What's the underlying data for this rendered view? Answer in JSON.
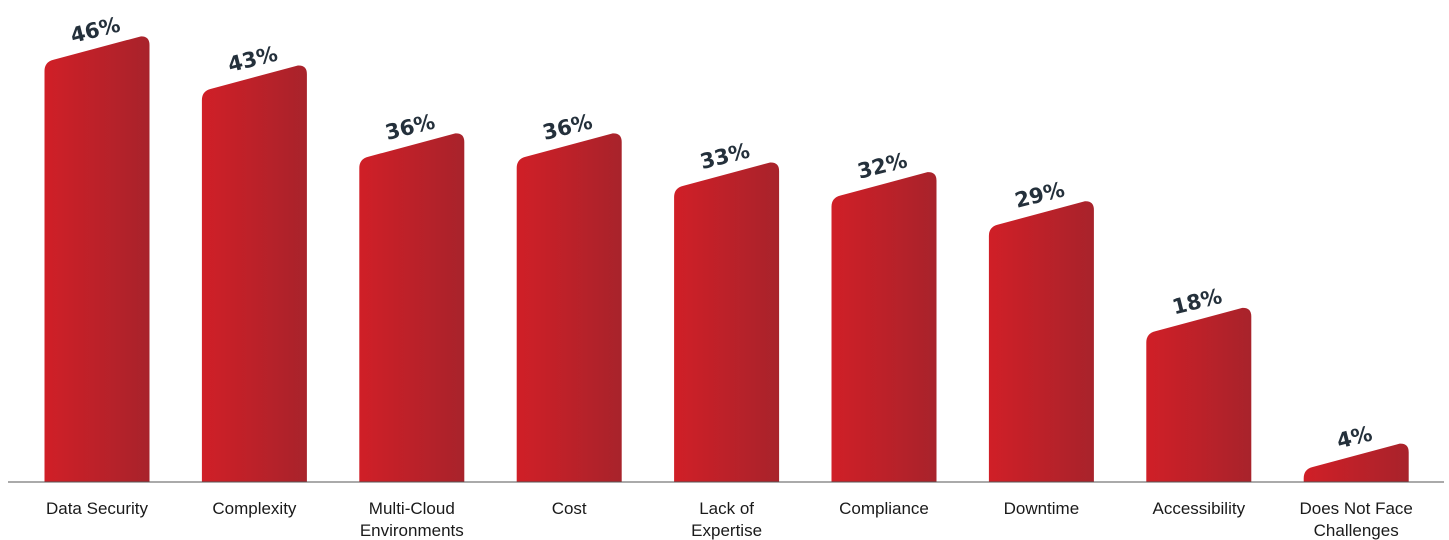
{
  "chart_data": {
    "type": "bar",
    "title": "",
    "xlabel": "",
    "ylabel": "",
    "ylim": [
      0,
      46
    ],
    "grid": false,
    "legend": "none",
    "bar_color": "#d01f27",
    "bar_color_shade": "#a8232b",
    "value_label_color": "#24303b",
    "baseline_color": "#555555",
    "categories": [
      [
        "Data Security"
      ],
      [
        "Complexity"
      ],
      [
        "Multi-Cloud",
        "Environments"
      ],
      [
        "Cost"
      ],
      [
        "Lack of",
        "Expertise"
      ],
      [
        "Compliance"
      ],
      [
        "Downtime"
      ],
      [
        "Accessibility"
      ],
      [
        "Does Not Face",
        "Challenges"
      ]
    ],
    "values": [
      46,
      43,
      36,
      36,
      33,
      32,
      29,
      18,
      4
    ],
    "value_labels": [
      "46%",
      "43%",
      "36%",
      "36%",
      "33%",
      "32%",
      "29%",
      "18%",
      "4%"
    ]
  }
}
